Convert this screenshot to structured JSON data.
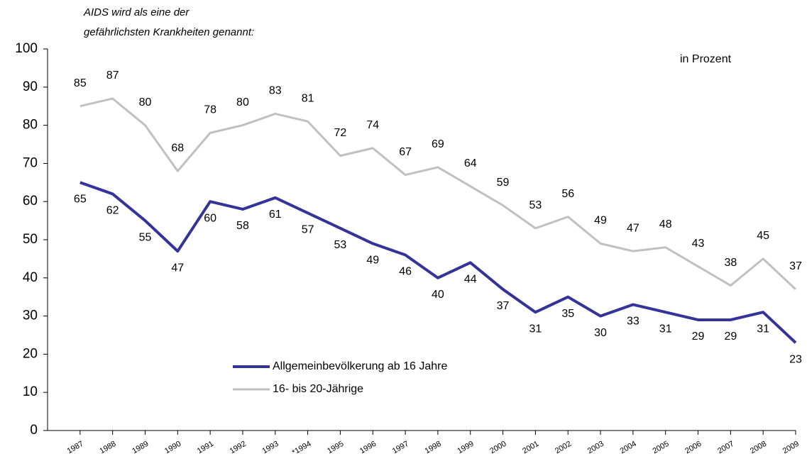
{
  "chart_data": {
    "type": "line",
    "title_lines": [
      "AIDS wird als eine der",
      "gefährlichsten Krankheiten genannt:"
    ],
    "unit_label": "in Prozent",
    "categories": [
      "1987",
      "1988",
      "1989",
      "1990",
      "1991",
      "1992",
      "1993",
      "*1994",
      "1995",
      "1996",
      "1997",
      "1998",
      "1999",
      "2000",
      "2001",
      "2002",
      "2003",
      "2004",
      "2005",
      "2006",
      "2007",
      "2008",
      "2009"
    ],
    "series": [
      {
        "name": "Allgemeinbevölkerung ab 16 Jahre",
        "color": "#333399",
        "values": [
          65,
          62,
          55,
          47,
          60,
          58,
          61,
          57,
          53,
          49,
          46,
          40,
          44,
          37,
          31,
          35,
          30,
          33,
          31,
          29,
          29,
          31,
          23
        ]
      },
      {
        "name": "16- bis 20-Jährige",
        "color": "#c0c0c0",
        "values": [
          85,
          87,
          80,
          68,
          78,
          80,
          83,
          81,
          72,
          74,
          67,
          69,
          64,
          59,
          53,
          56,
          49,
          47,
          48,
          43,
          38,
          45,
          37
        ]
      }
    ],
    "ylim": [
      0,
      100
    ],
    "yticks": [
      0,
      10,
      20,
      30,
      40,
      50,
      60,
      70,
      80,
      90,
      100
    ]
  }
}
